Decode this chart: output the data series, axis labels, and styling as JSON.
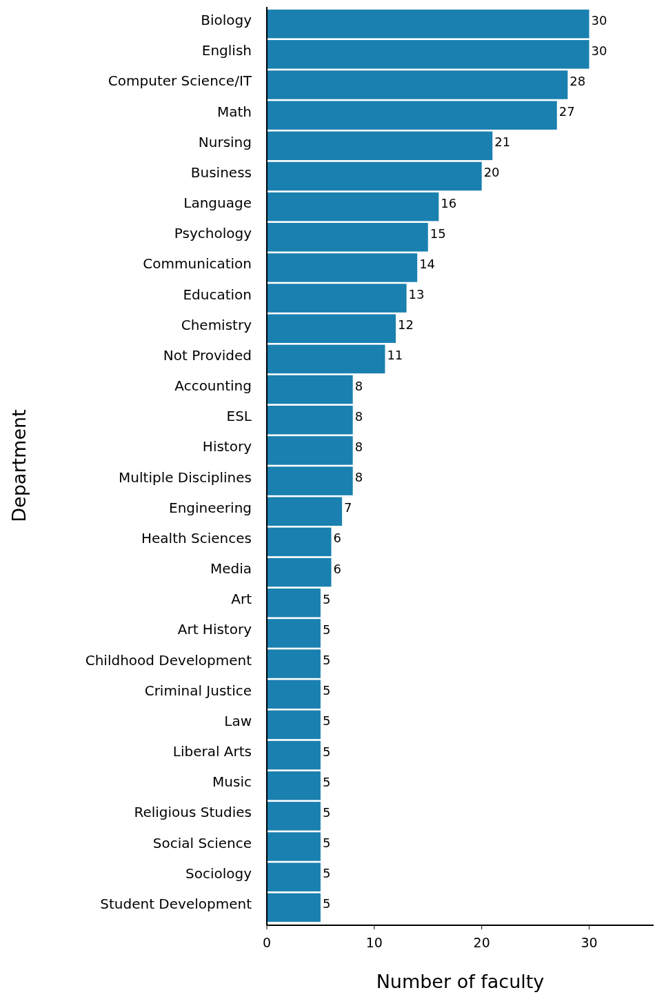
{
  "chart_data": {
    "type": "bar",
    "orientation": "horizontal",
    "xlabel": "Number of faculty",
    "ylabel": "Department",
    "categories": [
      "Biology",
      "English",
      "Computer Science/IT",
      "Math",
      "Nursing",
      "Business",
      "Language",
      "Psychology",
      "Communication",
      "Education",
      "Chemistry",
      "Not Provided",
      "Accounting",
      "ESL",
      "History",
      "Multiple Disciplines",
      "Engineering",
      "Health Sciences",
      "Media",
      "Art",
      "Art History",
      "Childhood Development",
      "Criminal Justice",
      "Law",
      "Liberal Arts",
      "Music",
      "Religious Studies",
      "Social Science",
      "Sociology",
      "Student Development"
    ],
    "values": [
      30,
      30,
      28,
      27,
      21,
      20,
      16,
      15,
      14,
      13,
      12,
      11,
      8,
      8,
      8,
      8,
      7,
      6,
      6,
      5,
      5,
      5,
      5,
      5,
      5,
      5,
      5,
      5,
      5,
      5
    ],
    "color": "#1a80b0",
    "xlim": [
      0,
      36
    ],
    "xticks": [
      0,
      10,
      20,
      30
    ],
    "data_labels": true
  }
}
